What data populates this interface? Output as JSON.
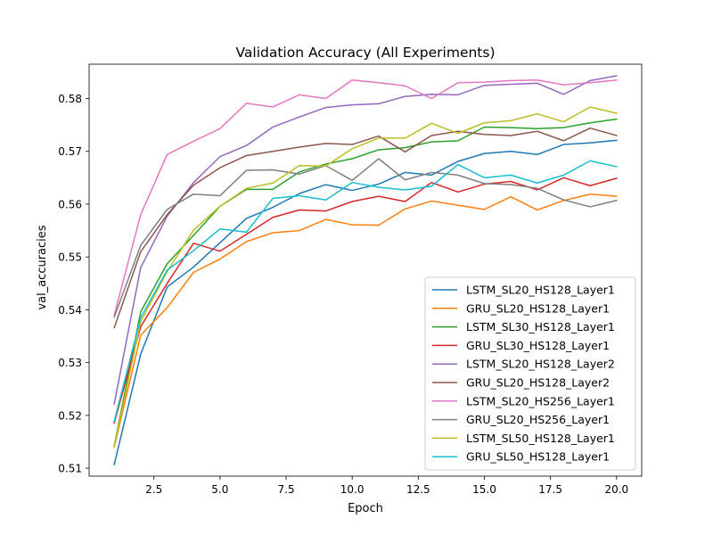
{
  "chart_data": {
    "type": "line",
    "title": "Validation Accuracy (All Experiments)",
    "xlabel": "Epoch",
    "ylabel": "val_accuracies",
    "xlim": [
      0.05,
      20.95
    ],
    "ylim": [
      0.5085,
      0.5865
    ],
    "xticks": [
      2.5,
      5.0,
      7.5,
      10.0,
      12.5,
      15.0,
      17.5,
      20.0
    ],
    "xtick_labels": [
      "2.5",
      "5.0",
      "7.5",
      "10.0",
      "12.5",
      "15.0",
      "17.5",
      "20.0"
    ],
    "yticks": [
      0.51,
      0.52,
      0.53,
      0.54,
      0.55,
      0.56,
      0.57,
      0.58
    ],
    "ytick_labels": [
      "0.51",
      "0.52",
      "0.53",
      "0.54",
      "0.55",
      "0.56",
      "0.57",
      "0.58"
    ],
    "grid": false,
    "legend_position": "lower-right",
    "x": [
      1,
      2,
      3,
      4,
      5,
      6,
      7,
      8,
      9,
      10,
      11,
      12,
      13,
      14,
      15,
      16,
      17,
      18,
      19,
      20
    ],
    "series": [
      {
        "name": "LSTM_SL20_HS128_Layer1",
        "color": "#1f77b4",
        "values": [
          0.5107,
          0.5316,
          0.5443,
          0.5481,
          0.5527,
          0.5573,
          0.5594,
          0.562,
          0.5637,
          0.5626,
          0.5638,
          0.566,
          0.5655,
          0.5681,
          0.5696,
          0.57,
          0.5694,
          0.5713,
          0.5716,
          0.5721
        ]
      },
      {
        "name": "GRU_SL20_HS128_Layer1",
        "color": "#ff7f0e",
        "values": [
          0.514,
          0.5352,
          0.5404,
          0.5471,
          0.5496,
          0.5529,
          0.5546,
          0.555,
          0.5571,
          0.5561,
          0.556,
          0.5591,
          0.5606,
          0.5598,
          0.559,
          0.5614,
          0.5589,
          0.5607,
          0.5619,
          0.5615
        ]
      },
      {
        "name": "LSTM_SL30_HS128_Layer1",
        "color": "#2ca02c",
        "values": [
          0.5142,
          0.5396,
          0.5487,
          0.5541,
          0.5596,
          0.5628,
          0.5628,
          0.5661,
          0.5676,
          0.5686,
          0.5703,
          0.5707,
          0.5718,
          0.572,
          0.5746,
          0.5745,
          0.5743,
          0.5745,
          0.5754,
          0.5761
        ]
      },
      {
        "name": "GRU_SL30_HS128_Layer1",
        "color": "#d62728",
        "values": [
          0.5186,
          0.5368,
          0.545,
          0.5526,
          0.5511,
          0.5543,
          0.5575,
          0.5589,
          0.5587,
          0.5605,
          0.5615,
          0.5605,
          0.5641,
          0.5623,
          0.5638,
          0.5643,
          0.5627,
          0.565,
          0.5635,
          0.5649
        ]
      },
      {
        "name": "LSTM_SL20_HS128_Layer2",
        "color": "#9467bd",
        "values": [
          0.5222,
          0.548,
          0.5577,
          0.5641,
          0.569,
          0.5711,
          0.5746,
          0.5765,
          0.5783,
          0.5788,
          0.579,
          0.5804,
          0.5808,
          0.5807,
          0.5825,
          0.5827,
          0.5829,
          0.5808,
          0.5834,
          0.5843
        ]
      },
      {
        "name": "GRU_SL20_HS128_Layer2",
        "color": "#8c564b",
        "values": [
          0.5366,
          0.551,
          0.558,
          0.5636,
          0.5669,
          0.5692,
          0.57,
          0.5708,
          0.5715,
          0.5713,
          0.5729,
          0.5699,
          0.573,
          0.5738,
          0.5732,
          0.573,
          0.5738,
          0.572,
          0.5744,
          0.573
        ]
      },
      {
        "name": "LSTM_SL20_HS256_Layer1",
        "color": "#e377c2",
        "values": [
          0.539,
          0.558,
          0.5694,
          0.5719,
          0.5743,
          0.5791,
          0.5784,
          0.5807,
          0.58,
          0.5835,
          0.583,
          0.5824,
          0.58,
          0.583,
          0.5831,
          0.5834,
          0.5835,
          0.5826,
          0.583,
          0.5835
        ]
      },
      {
        "name": "GRU_SL20_HS256_Layer1",
        "color": "#7f7f7f",
        "values": [
          0.5386,
          0.5522,
          0.559,
          0.5619,
          0.5616,
          0.5664,
          0.5665,
          0.5657,
          0.5673,
          0.5645,
          0.5686,
          0.5646,
          0.566,
          0.5655,
          0.5639,
          0.5637,
          0.563,
          0.5608,
          0.5595,
          0.5607
        ]
      },
      {
        "name": "LSTM_SL50_HS128_Layer1",
        "color": "#bcbd22",
        "values": [
          0.5141,
          0.5378,
          0.5472,
          0.5551,
          0.5596,
          0.563,
          0.564,
          0.5673,
          0.5672,
          0.5705,
          0.5725,
          0.5725,
          0.5753,
          0.5734,
          0.5754,
          0.5758,
          0.5771,
          0.5756,
          0.5784,
          0.5772
        ]
      },
      {
        "name": "GRU_SL50_HS128_Layer1",
        "color": "#17becf",
        "values": [
          0.5189,
          0.5385,
          0.5475,
          0.5512,
          0.5553,
          0.5547,
          0.5611,
          0.5616,
          0.5608,
          0.5641,
          0.5632,
          0.5627,
          0.5634,
          0.5675,
          0.565,
          0.5655,
          0.564,
          0.5655,
          0.5682,
          0.5671
        ]
      }
    ]
  }
}
